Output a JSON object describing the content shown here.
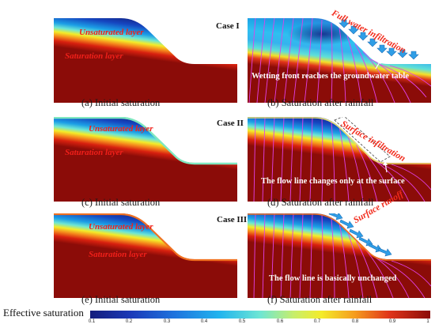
{
  "panels": [
    {
      "id": "a",
      "caption": "(a) Initial saturation",
      "layer_labels": [
        "Unsaturated layer",
        "Saturation layer"
      ]
    },
    {
      "id": "b",
      "caption": "(b) Saturation after rainfall",
      "case": "Case I",
      "annotation_red": "Full water infiltration",
      "annotation_white": "Wetting front reaches the groundwater table"
    },
    {
      "id": "c",
      "caption": "(c) Initial saturation",
      "layer_labels": [
        "Unsaturated layer",
        "Saturation layer"
      ]
    },
    {
      "id": "d",
      "caption": "(d) Saturation after rainfall",
      "case": "Case II",
      "annotation_red": "Surface infiltration",
      "annotation_white": "The flow line changes only at the surface"
    },
    {
      "id": "e",
      "caption": "(e) Initial saturation",
      "layer_labels": [
        "Unsaturated layer",
        "Saturation layer"
      ]
    },
    {
      "id": "f",
      "caption": "(f) Saturation after rainfall",
      "case": "Case III",
      "annotation_red": "Surface runoff",
      "annotation_white": "The flow line is basically unchanged"
    }
  ],
  "colorbar": {
    "title": "Effective saturation",
    "ticks": [
      "0.1",
      "0.2",
      "0.3",
      "0.4",
      "0.5",
      "0.6",
      "0.7",
      "0.8",
      "0.9",
      "1"
    ]
  },
  "colors": {
    "saturated": "#8b0c08",
    "annotation": "#f22b1c",
    "flow_line": "#e040e8",
    "arrow": "#2f9ee6"
  }
}
